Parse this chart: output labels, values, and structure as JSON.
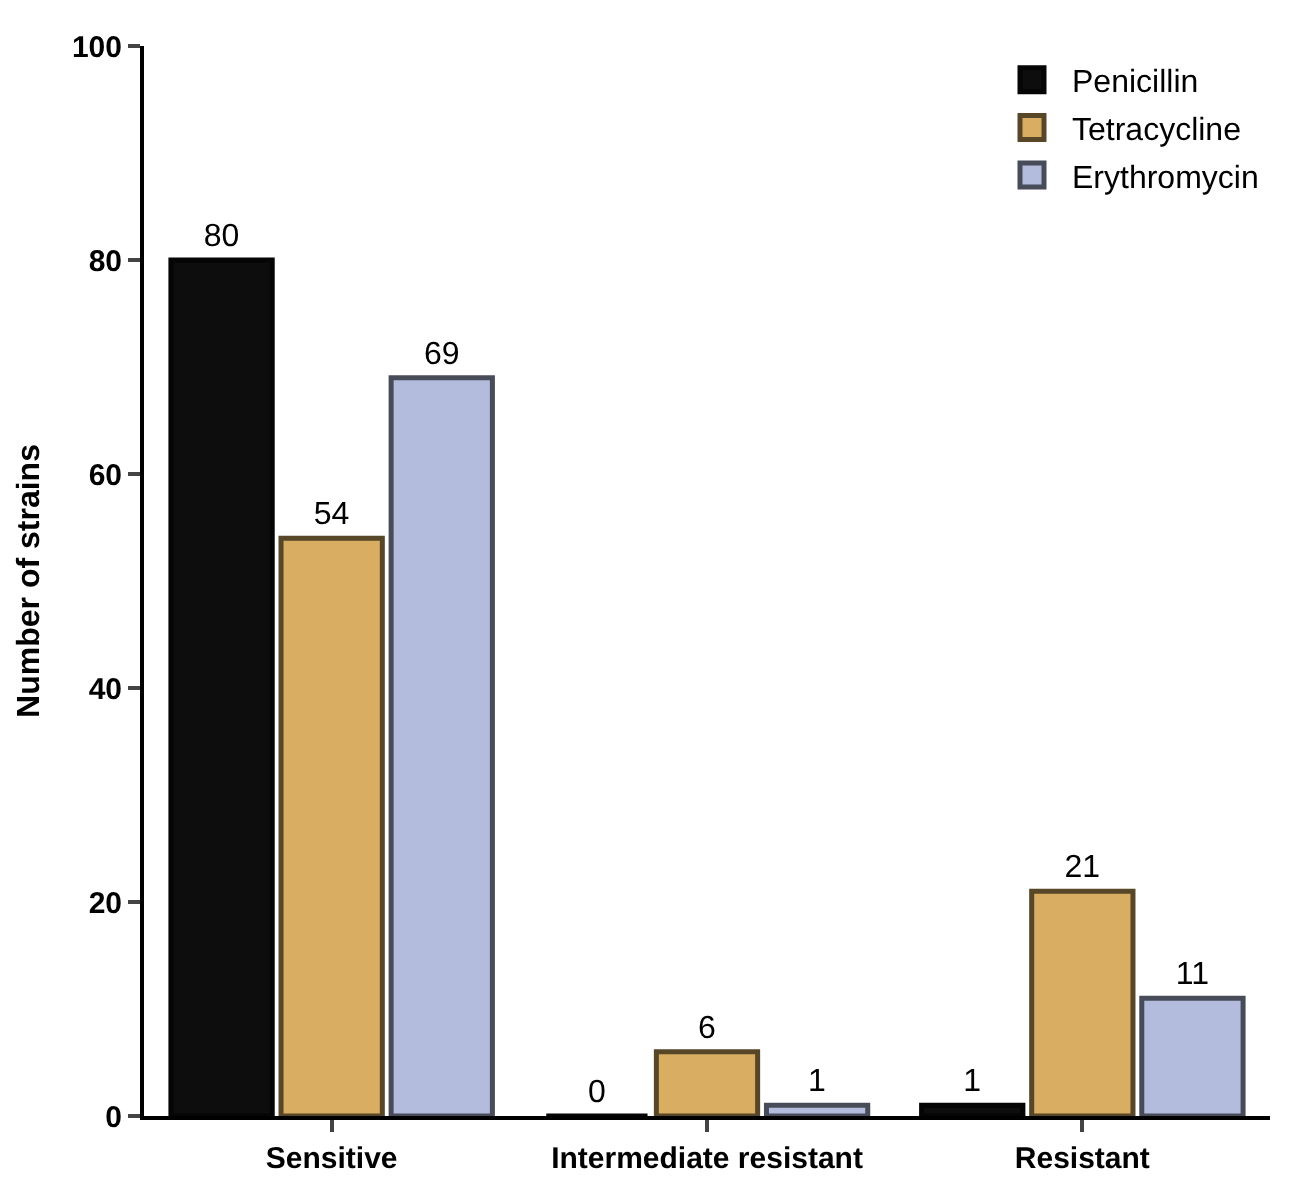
{
  "chart_data": {
    "type": "bar",
    "ylabel": "Number of strains",
    "categories": [
      "Sensitive",
      "Intermediate resistant",
      "Resistant"
    ],
    "series": [
      {
        "name": "Penicillin",
        "color": "#0d0d0d",
        "values": [
          80,
          0,
          1
        ]
      },
      {
        "name": "Tetracycline",
        "color": "#d9ae62",
        "values": [
          54,
          6,
          21
        ]
      },
      {
        "name": "Erythromycin",
        "color": "#b3bcdc",
        "values": [
          69,
          1,
          11
        ]
      }
    ],
    "ylim": [
      0,
      100
    ],
    "yticks": [
      0,
      20,
      40,
      60,
      80,
      100
    ],
    "grid": false,
    "legend": "top right",
    "data_labels": true
  }
}
